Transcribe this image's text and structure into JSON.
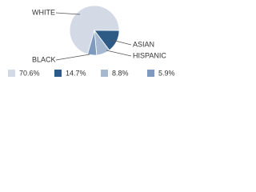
{
  "chart_data": {
    "type": "pie",
    "categories": [
      "WHITE",
      "ASIAN",
      "HISPANIC",
      "BLACK"
    ],
    "values": [
      70.6,
      14.7,
      8.8,
      5.9
    ],
    "value_labels": [
      "70.6%",
      "14.7%",
      "8.8%",
      "5.9%"
    ],
    "colors": [
      "#d3dae6",
      "#2d5b86",
      "#a6b9d1",
      "#7e9bbf"
    ]
  }
}
